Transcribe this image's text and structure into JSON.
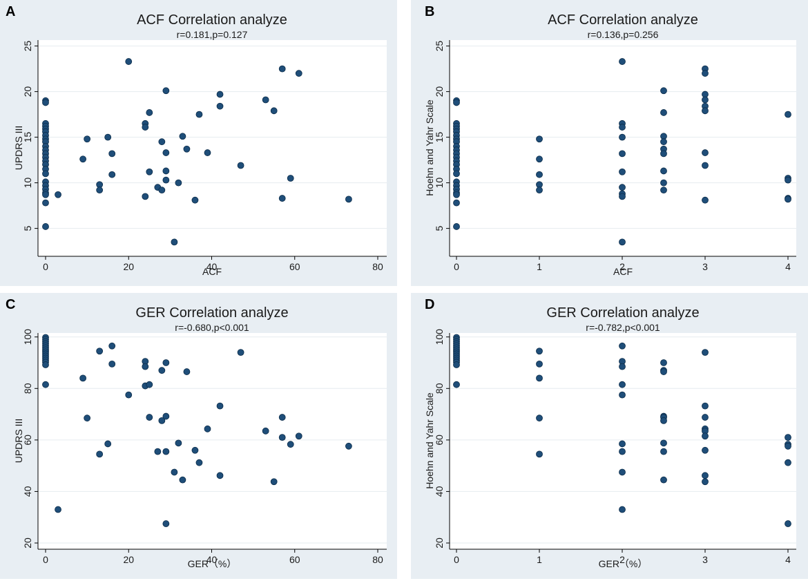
{
  "colors": {
    "panel_bg": "#e8eef3",
    "plot_bg": "#ffffff",
    "grid": "#e6ebef",
    "axis": "#000000",
    "marker": "#1f4e79",
    "marker_edge": "#0b2b48",
    "title": "#1a1a1a"
  },
  "chart_data": [
    {
      "id": "A",
      "panel_label": "A",
      "type": "scatter",
      "title": "ACF Correlation analyze",
      "subtitle": "r=0.181,p=0.127",
      "xlabel": "ACF",
      "ylabel": "UPDRS III",
      "xlim": [
        0,
        80
      ],
      "ylim": [
        3,
        25.5
      ],
      "xticks": [
        0,
        20,
        40,
        60,
        80
      ],
      "yticks": [
        5,
        10,
        15,
        20,
        25
      ],
      "xtick_labels": [
        "0",
        "20",
        "40",
        "60",
        "80"
      ],
      "ytick_labels": [
        "5",
        "10",
        "15",
        "20",
        "25"
      ],
      "points": [
        [
          0,
          19
        ],
        [
          0,
          18.8
        ],
        [
          0,
          16.5
        ],
        [
          0,
          16.2
        ],
        [
          0,
          15.9
        ],
        [
          0,
          15.6
        ],
        [
          0,
          15.2
        ],
        [
          0,
          14.8
        ],
        [
          0,
          14.5
        ],
        [
          0,
          14
        ],
        [
          0,
          13.6
        ],
        [
          0,
          13.2
        ],
        [
          0,
          12.8
        ],
        [
          0,
          12.4
        ],
        [
          0,
          12
        ],
        [
          0,
          11.5
        ],
        [
          0,
          11
        ],
        [
          0,
          10.1
        ],
        [
          0,
          9.7
        ],
        [
          0,
          9.3
        ],
        [
          0,
          8.9
        ],
        [
          0,
          8.7
        ],
        [
          0,
          7.8
        ],
        [
          0,
          5.2
        ],
        [
          3,
          8.7
        ],
        [
          9,
          12.6
        ],
        [
          10,
          14.8
        ],
        [
          13,
          9.8
        ],
        [
          13,
          9.2
        ],
        [
          15,
          15
        ],
        [
          16,
          13.2
        ],
        [
          16,
          10.9
        ],
        [
          20,
          23.3
        ],
        [
          24,
          16.5
        ],
        [
          24,
          16.1
        ],
        [
          24,
          8.5
        ],
        [
          25,
          17.7
        ],
        [
          25,
          11.2
        ],
        [
          27,
          9.5
        ],
        [
          28,
          14.5
        ],
        [
          28,
          9.2
        ],
        [
          29,
          20.1
        ],
        [
          29,
          13.3
        ],
        [
          29,
          11.3
        ],
        [
          29,
          10.3
        ],
        [
          31,
          3.5
        ],
        [
          32,
          10
        ],
        [
          33,
          15.1
        ],
        [
          34,
          13.7
        ],
        [
          36,
          8.1
        ],
        [
          37,
          17.5
        ],
        [
          39,
          13.3
        ],
        [
          42,
          19.7
        ],
        [
          42,
          18.4
        ],
        [
          47,
          11.9
        ],
        [
          53,
          19.1
        ],
        [
          55,
          17.9
        ],
        [
          57,
          22.5
        ],
        [
          57,
          8.3
        ],
        [
          59,
          10.5
        ],
        [
          61,
          22
        ],
        [
          73,
          8.2
        ]
      ]
    },
    {
      "id": "B",
      "panel_label": "B",
      "type": "scatter",
      "title": "ACF Correlation analyze",
      "subtitle": "r=0.136,p=0.256",
      "xlabel": "ACF",
      "ylabel": "Hoehn and Yahr Scale",
      "xlim": [
        0,
        4
      ],
      "ylim": [
        3,
        25.5
      ],
      "xticks": [
        0,
        1,
        2,
        3,
        4
      ],
      "yticks": [
        5,
        10,
        15,
        20,
        25
      ],
      "xtick_labels": [
        "0",
        "1",
        "2",
        "3",
        "4"
      ],
      "ytick_labels": [
        "5",
        "10",
        "15",
        "20",
        "25"
      ],
      "points": [
        [
          0,
          19
        ],
        [
          0,
          18.8
        ],
        [
          0,
          16.5
        ],
        [
          0,
          16.2
        ],
        [
          0,
          15.9
        ],
        [
          0,
          15.6
        ],
        [
          0,
          15.2
        ],
        [
          0,
          14.8
        ],
        [
          0,
          14.5
        ],
        [
          0,
          14
        ],
        [
          0,
          13.6
        ],
        [
          0,
          13.2
        ],
        [
          0,
          12.8
        ],
        [
          0,
          12.4
        ],
        [
          0,
          12
        ],
        [
          0,
          11.5
        ],
        [
          0,
          11
        ],
        [
          0,
          10.1
        ],
        [
          0,
          9.7
        ],
        [
          0,
          9.3
        ],
        [
          0,
          8.9
        ],
        [
          0,
          8.7
        ],
        [
          0,
          7.8
        ],
        [
          0,
          5.2
        ],
        [
          1,
          14.8
        ],
        [
          1,
          12.6
        ],
        [
          1,
          10.9
        ],
        [
          1,
          9.8
        ],
        [
          1,
          9.2
        ],
        [
          2,
          23.3
        ],
        [
          2,
          16.5
        ],
        [
          2,
          16.1
        ],
        [
          2,
          15
        ],
        [
          2,
          13.2
        ],
        [
          2,
          11.2
        ],
        [
          2,
          9.5
        ],
        [
          2,
          8.8
        ],
        [
          2,
          8.5
        ],
        [
          2,
          3.5
        ],
        [
          2.5,
          20.1
        ],
        [
          2.5,
          17.7
        ],
        [
          2.5,
          15.1
        ],
        [
          2.5,
          14.5
        ],
        [
          2.5,
          13.7
        ],
        [
          2.5,
          13.2
        ],
        [
          2.5,
          11.3
        ],
        [
          2.5,
          10
        ],
        [
          2.5,
          9.2
        ],
        [
          3,
          22.5
        ],
        [
          3,
          22
        ],
        [
          3,
          19.7
        ],
        [
          3,
          19.1
        ],
        [
          3,
          18.4
        ],
        [
          3,
          17.9
        ],
        [
          3,
          13.3
        ],
        [
          3,
          11.9
        ],
        [
          3,
          8.1
        ],
        [
          4,
          17.5
        ],
        [
          4,
          10.5
        ],
        [
          4,
          10.3
        ],
        [
          4,
          8.3
        ],
        [
          4,
          8.2
        ]
      ]
    },
    {
      "id": "C",
      "panel_label": "C",
      "type": "scatter",
      "title": "GER Correlation analyze",
      "subtitle": "r=-0.680,p<0.001",
      "xlabel": "GER（%）",
      "ylabel": "UPDRS III",
      "xlim": [
        0,
        80
      ],
      "ylim": [
        20,
        101
      ],
      "xticks": [
        0,
        20,
        40,
        60,
        80
      ],
      "yticks": [
        20,
        40,
        60,
        80,
        100
      ],
      "xtick_labels": [
        "0",
        "20",
        "40",
        "60",
        "80"
      ],
      "ytick_labels": [
        "20",
        "40",
        "60",
        "80",
        "100"
      ],
      "points": [
        [
          0,
          99.8
        ],
        [
          0,
          99
        ],
        [
          0,
          98.2
        ],
        [
          0,
          97.4
        ],
        [
          0,
          96.6
        ],
        [
          0,
          95.8
        ],
        [
          0,
          95
        ],
        [
          0,
          94.2
        ],
        [
          0,
          93.4
        ],
        [
          0,
          92.6
        ],
        [
          0,
          91.8
        ],
        [
          0,
          91
        ],
        [
          0,
          90.2
        ],
        [
          0,
          89.2
        ],
        [
          0,
          81.5
        ],
        [
          3,
          33
        ],
        [
          9,
          84
        ],
        [
          10,
          68.5
        ],
        [
          13,
          94.5
        ],
        [
          13,
          54.5
        ],
        [
          15,
          58.5
        ],
        [
          16,
          96.5
        ],
        [
          16,
          89.5
        ],
        [
          20,
          77.5
        ],
        [
          24,
          90.5
        ],
        [
          24,
          88.5
        ],
        [
          24,
          81
        ],
        [
          25,
          81.5
        ],
        [
          25,
          68.8
        ],
        [
          27,
          55.5
        ],
        [
          28,
          87
        ],
        [
          28,
          67.5
        ],
        [
          29,
          90
        ],
        [
          29,
          69.2
        ],
        [
          29,
          55.5
        ],
        [
          29,
          27.5
        ],
        [
          31,
          47.5
        ],
        [
          32,
          58.8
        ],
        [
          33,
          44.5
        ],
        [
          34,
          86.5
        ],
        [
          36,
          56
        ],
        [
          37,
          51.2
        ],
        [
          39,
          64.3
        ],
        [
          42,
          73.2
        ],
        [
          42,
          46.2
        ],
        [
          47,
          94
        ],
        [
          53,
          63.5
        ],
        [
          55,
          43.8
        ],
        [
          57,
          68.8
        ],
        [
          57,
          61
        ],
        [
          59,
          58.3
        ],
        [
          61,
          61.5
        ],
        [
          73,
          57.6
        ]
      ]
    },
    {
      "id": "D",
      "panel_label": "D",
      "type": "scatter",
      "title": "GER Correlation analyze",
      "subtitle": "r=-0.782,p<0.001",
      "xlabel": "GER（%）",
      "ylabel": "Hoehn and Yahr Scale",
      "xlim": [
        0,
        4
      ],
      "ylim": [
        20,
        101
      ],
      "xticks": [
        0,
        1,
        2,
        3,
        4
      ],
      "yticks": [
        20,
        40,
        60,
        80,
        100
      ],
      "xtick_labels": [
        "0",
        "1",
        "2",
        "3",
        "4"
      ],
      "ytick_labels": [
        "20",
        "40",
        "60",
        "80",
        "100"
      ],
      "points": [
        [
          0,
          99.8
        ],
        [
          0,
          99
        ],
        [
          0,
          98.2
        ],
        [
          0,
          97.4
        ],
        [
          0,
          96.6
        ],
        [
          0,
          95.8
        ],
        [
          0,
          95
        ],
        [
          0,
          94.2
        ],
        [
          0,
          93.4
        ],
        [
          0,
          92.6
        ],
        [
          0,
          91.8
        ],
        [
          0,
          91
        ],
        [
          0,
          90.2
        ],
        [
          0,
          89.2
        ],
        [
          0,
          81.5
        ],
        [
          1,
          94.5
        ],
        [
          1,
          89.5
        ],
        [
          1,
          84
        ],
        [
          1,
          68.5
        ],
        [
          1,
          54.5
        ],
        [
          2,
          96.5
        ],
        [
          2,
          90.5
        ],
        [
          2,
          88.5
        ],
        [
          2,
          81.5
        ],
        [
          2,
          77.5
        ],
        [
          2,
          58.5
        ],
        [
          2,
          55.5
        ],
        [
          2,
          47.5
        ],
        [
          2,
          33
        ],
        [
          2.5,
          90
        ],
        [
          2.5,
          87
        ],
        [
          2.5,
          86.5
        ],
        [
          2.5,
          69.2
        ],
        [
          2.5,
          68.8
        ],
        [
          2.5,
          67.5
        ],
        [
          2.5,
          58.8
        ],
        [
          2.5,
          55.5
        ],
        [
          2.5,
          44.5
        ],
        [
          3,
          94
        ],
        [
          3,
          73.2
        ],
        [
          3,
          68.8
        ],
        [
          3,
          64.3
        ],
        [
          3,
          63.5
        ],
        [
          3,
          61.5
        ],
        [
          3,
          56
        ],
        [
          3,
          46.2
        ],
        [
          3,
          43.8
        ],
        [
          4,
          61
        ],
        [
          4,
          58.3
        ],
        [
          4,
          57.6
        ],
        [
          4,
          51.2
        ],
        [
          4,
          27.5
        ]
      ]
    }
  ]
}
